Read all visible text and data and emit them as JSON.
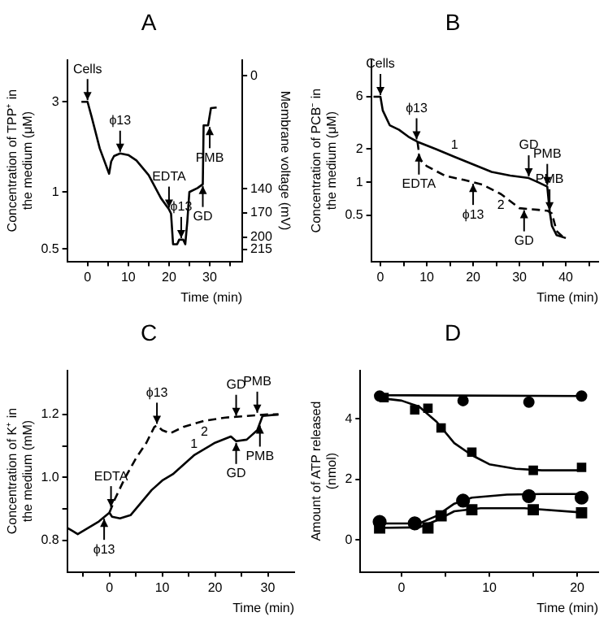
{
  "chart_data": [
    {
      "type": "line",
      "title": "A",
      "xlabel": "Time (min)",
      "ylabel": "Concentration of TPP⁺ in the medium (μM)",
      "y2label": "Membrane voltage (mV)",
      "log": "y",
      "grid": false,
      "legend": false,
      "xlim": [
        -5,
        38
      ],
      "xticks": [
        0,
        {
          "value": 5,
          "label": null
        },
        10,
        {
          "value": 15,
          "label": null
        },
        20,
        {
          "value": 25,
          "label": null
        },
        30,
        {
          "value": 35,
          "label": null
        }
      ],
      "ylim": [
        0.43,
        5
      ],
      "yticks": [
        0.5,
        1,
        3
      ],
      "y2lim": [
        230,
        -20
      ],
      "y2ticks": [
        0,
        140,
        170,
        200,
        215
      ],
      "series": [
        {
          "color": "#000000",
          "line_style": "solid",
          "x": [
            -1.5,
            0,
            1,
            3,
            5,
            5.3,
            5.8,
            6.5,
            8,
            10,
            12,
            15,
            18,
            20,
            20.5,
            21,
            22,
            22.5,
            23.5,
            24,
            24.5,
            25,
            27,
            28.3,
            28.5,
            29.6,
            30.3,
            31.7
          ],
          "values": [
            3,
            3,
            2.5,
            1.7,
            1.3,
            1.25,
            1.45,
            1.55,
            1.6,
            1.57,
            1.47,
            1.23,
            0.93,
            0.81,
            0.77,
            0.53,
            0.53,
            0.56,
            0.56,
            0.53,
            0.7,
            1.0,
            1.05,
            1.1,
            2.25,
            2.25,
            2.78,
            2.8
          ]
        }
      ],
      "annotations": [
        {
          "text": "Cells",
          "x": 0,
          "y": 3
        },
        {
          "text": "ϕ13",
          "x": 8,
          "y": 1.6
        },
        {
          "text": "EDTA",
          "x": 20,
          "y": 0.81
        },
        {
          "text": "ϕ13",
          "x": 23,
          "y": 0.56
        },
        {
          "text": "GD",
          "x": 28.3,
          "y": 1.1
        },
        {
          "text": "PMB",
          "x": 30,
          "y": 2.25
        }
      ]
    },
    {
      "type": "line",
      "title": "B",
      "xlabel": "Time (min)",
      "ylabel": "Concentration of PCB⁻ in the medium (μM)",
      "log": "y",
      "grid": false,
      "legend": false,
      "xlim": [
        -2,
        47
      ],
      "xticks": [
        0,
        {
          "value": 5,
          "label": null
        },
        10,
        {
          "value": 15,
          "label": null
        },
        20,
        {
          "value": 25,
          "label": null
        },
        30,
        {
          "value": 35,
          "label": null
        },
        40,
        {
          "value": 45,
          "label": null
        }
      ],
      "ylim": [
        0.19,
        13
      ],
      "yticks": [
        0.5,
        1,
        2,
        6
      ],
      "series": [
        {
          "name": "1",
          "color": "#000000",
          "line_style": "solid",
          "x": [
            -1.5,
            0,
            0.5,
            2,
            4,
            6,
            8,
            12,
            16,
            20,
            24,
            28,
            32,
            34,
            36,
            36.5,
            37,
            38,
            40
          ],
          "values": [
            6,
            6,
            4.5,
            3.3,
            3,
            2.6,
            2.33,
            2,
            1.7,
            1.45,
            1.24,
            1.15,
            1.09,
            1.0,
            0.91,
            0.55,
            0.4,
            0.33,
            0.31
          ]
        },
        {
          "name": "2",
          "color": "#000000",
          "line_style": "dashed",
          "x": [
            8,
            8.5,
            10,
            14,
            18,
            22,
            26,
            30,
            34,
            36,
            37,
            38,
            40
          ],
          "values": [
            2.33,
            1.6,
            1.4,
            1.14,
            1.05,
            0.95,
            0.78,
            0.58,
            0.56,
            0.55,
            0.52,
            0.36,
            0.3
          ]
        }
      ],
      "annotations": [
        {
          "text": "Cells",
          "x": 0,
          "y": 6
        },
        {
          "text": "ϕ13",
          "x": 7.8,
          "y": 2.37
        },
        {
          "text": "EDTA",
          "x": 8.3,
          "y": 1.89
        },
        {
          "text": "ϕ13",
          "x": 20,
          "y": 1.0
        },
        {
          "text": "GD",
          "x": 32,
          "y": 1.09
        },
        {
          "text": "PMB",
          "x": 36,
          "y": 0.91
        },
        {
          "text": "GD",
          "x": 31,
          "y": 0.575
        },
        {
          "text": "PMB",
          "x": 36.5,
          "y": 0.535
        }
      ]
    },
    {
      "type": "line",
      "title": "C",
      "xlabel": "Time (min)",
      "ylabel": "Concentration of K⁺ in the medium (mM)",
      "grid": false,
      "legend": false,
      "xlim": [
        -8,
        35
      ],
      "xticks": [
        {
          "value": -5,
          "label": null
        },
        0,
        {
          "value": 5,
          "label": null
        },
        10,
        {
          "value": 15,
          "label": null
        },
        20,
        {
          "value": 25,
          "label": null
        },
        30
      ],
      "ylim": [
        0.7,
        1.34
      ],
      "yticks": [
        0.8,
        {
          "value": 0.9,
          "label": null
        },
        {
          "value": 1,
          "label": "1.0"
        },
        {
          "value": 1.1,
          "label": null
        },
        1.2
      ],
      "series": [
        {
          "name": "1",
          "color": "#000000",
          "line_style": "solid",
          "x": [
            -8,
            -7,
            -6,
            -4,
            -2,
            0,
            0.5,
            2,
            4,
            6,
            8,
            10,
            12,
            16,
            20,
            23,
            24,
            26,
            28,
            29,
            32
          ],
          "values": [
            0.84,
            0.83,
            0.82,
            0.84,
            0.86,
            0.888,
            0.875,
            0.87,
            0.88,
            0.92,
            0.96,
            0.99,
            1.01,
            1.07,
            1.11,
            1.13,
            1.115,
            1.12,
            1.15,
            1.195,
            1.2
          ]
        },
        {
          "name": "2",
          "color": "#000000",
          "line_style": "dashed",
          "x": [
            0,
            1,
            3,
            5,
            7,
            8.5,
            9,
            10,
            11.5,
            14,
            18,
            22,
            26,
            30,
            32
          ],
          "values": [
            0.888,
            0.93,
            1.0,
            1.06,
            1.11,
            1.16,
            1.165,
            1.15,
            1.14,
            1.16,
            1.18,
            1.19,
            1.195,
            1.2,
            1.2
          ]
        }
      ],
      "annotations": [
        {
          "text": "ϕ13",
          "x": 9,
          "y": 1.165
        },
        {
          "text": "EDTA",
          "x": 0.3,
          "y": 0.9
        },
        {
          "text": "ϕ13",
          "x": -1,
          "y": 0.874
        },
        {
          "text": "GD",
          "x": 24,
          "y": 1.19
        },
        {
          "text": "PMB",
          "x": 28,
          "y": 1.2
        },
        {
          "text": "GD",
          "x": 24,
          "y": 1.115
        },
        {
          "text": "PMB",
          "x": 28.5,
          "y": 1.17
        }
      ]
    },
    {
      "type": "scatter",
      "title": "D",
      "xlabel": "Time (min)",
      "ylabel": "Amount of ATP released (nmol)",
      "grid": false,
      "legend": false,
      "xlim": [
        -4.7,
        22.4
      ],
      "xticks": [
        0,
        {
          "value": 5,
          "label": null
        },
        10,
        {
          "value": 15,
          "label": null
        },
        20
      ],
      "ylim": [
        -1.05,
        5.6
      ],
      "yticks": [
        0,
        2,
        4
      ],
      "series": [
        {
          "type": "scatter",
          "marker": "circle",
          "color": "#000000",
          "x": [
            -2.5,
            7,
            14.5,
            20.5
          ],
          "values": [
            4.75,
            4.6,
            4.55,
            4.75
          ]
        },
        {
          "type": "scatter",
          "marker": "square",
          "color": "#000000",
          "x": [
            -2,
            1.5,
            3,
            4.5,
            8,
            15,
            20.5
          ],
          "values": [
            4.7,
            4.3,
            4.35,
            3.7,
            2.9,
            2.3,
            2.4
          ]
        },
        {
          "type": "scatter",
          "marker": "circle",
          "color": "#000000",
          "x": [
            -2.5,
            1.5,
            7,
            14.5,
            20.5
          ],
          "values": [
            0.6,
            0.55,
            1.3,
            1.45,
            1.4
          ]
        },
        {
          "type": "scatter",
          "marker": "square",
          "color": "#000000",
          "x": [
            -2.5,
            3,
            4.5,
            8,
            15,
            20.5
          ],
          "values": [
            0.4,
            0.4,
            0.8,
            1.0,
            1.0,
            0.9
          ]
        },
        {
          "type": "line",
          "color": "#000000",
          "x": [
            -3,
            21
          ],
          "values": [
            4.78,
            4.75
          ]
        },
        {
          "type": "line",
          "color": "#000000",
          "x": [
            -3,
            0,
            2,
            4,
            6,
            8,
            10,
            13,
            16,
            21
          ],
          "values": [
            4.7,
            4.6,
            4.4,
            3.9,
            3.2,
            2.8,
            2.5,
            2.35,
            2.3,
            2.3
          ]
        },
        {
          "type": "line",
          "color": "#000000",
          "x": [
            -3,
            2,
            4,
            6,
            8,
            12,
            16,
            21
          ],
          "values": [
            0.55,
            0.55,
            0.8,
            1.2,
            1.4,
            1.5,
            1.52,
            1.52
          ]
        },
        {
          "type": "line",
          "color": "#000000",
          "x": [
            -3,
            2,
            4,
            6,
            9,
            14,
            21
          ],
          "values": [
            0.4,
            0.42,
            0.65,
            0.95,
            1.05,
            1.05,
            0.9
          ]
        }
      ]
    }
  ]
}
